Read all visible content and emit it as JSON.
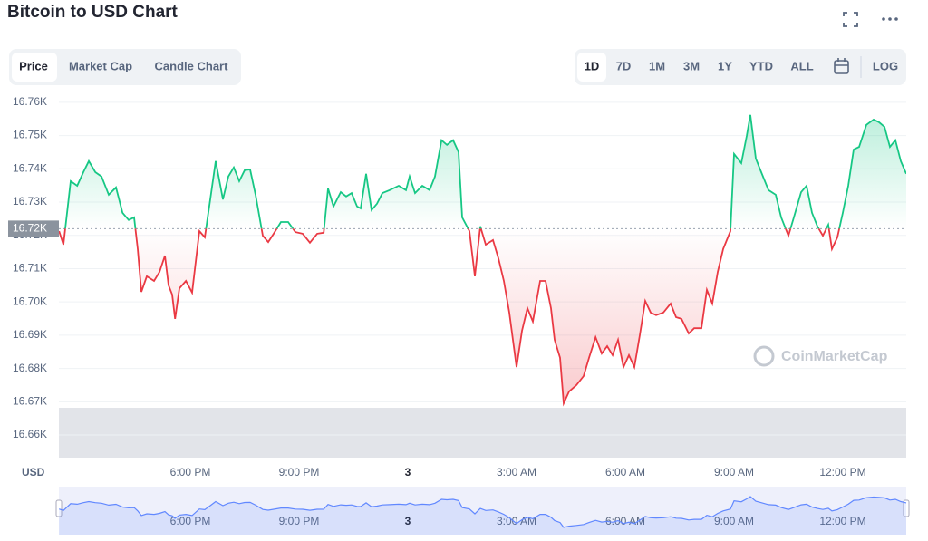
{
  "ui": {
    "tabs": [
      "Price",
      "Market Cap",
      "Candle Chart"
    ],
    "ranges": [
      "1D",
      "7D",
      "1M",
      "3M",
      "1Y",
      "YTD",
      "ALL"
    ],
    "log": "LOG",
    "watermark": "CoinMarketCap"
  },
  "chart_data": {
    "type": "line",
    "title": "Bitcoin to USD Chart",
    "y_unit": "USD",
    "up_color": "#16c784",
    "down_color": "#ea3943",
    "nav_color": "#6188ff",
    "grid": true,
    "reference": {
      "value": 16722,
      "label": "16.72K"
    },
    "xlim": [
      14.375,
      37.75
    ],
    "ylim": [
      16653.2,
      16763.5
    ],
    "xticks": [
      {
        "value": 18,
        "label": "6:00 PM"
      },
      {
        "value": 21,
        "label": "9:00 PM"
      },
      {
        "value": 24,
        "label": "3"
      },
      {
        "value": 27,
        "label": "3:00 AM"
      },
      {
        "value": 30,
        "label": "6:00 AM"
      },
      {
        "value": 33,
        "label": "9:00 AM"
      },
      {
        "value": 36,
        "label": "12:00 PM"
      }
    ],
    "yticks": [
      {
        "value": 16660,
        "label": "16.66K"
      },
      {
        "value": 16670,
        "label": "16.67K"
      },
      {
        "value": 16680,
        "label": "16.68K"
      },
      {
        "value": 16690,
        "label": "16.69K"
      },
      {
        "value": 16700,
        "label": "16.70K"
      },
      {
        "value": 16710,
        "label": "16.71K"
      },
      {
        "value": 16720,
        "label": "16.72K"
      },
      {
        "value": 16730,
        "label": "16.73K"
      },
      {
        "value": 16740,
        "label": "16.74K"
      },
      {
        "value": 16750,
        "label": "16.75K"
      },
      {
        "value": 16760,
        "label": "16.76K"
      }
    ],
    "x": [
      14.38,
      14.5,
      14.7,
      14.88,
      15.05,
      15.2,
      15.38,
      15.55,
      15.75,
      15.95,
      16.13,
      16.3,
      16.45,
      16.55,
      16.65,
      16.8,
      17.0,
      17.15,
      17.3,
      17.4,
      17.5,
      17.58,
      17.7,
      17.88,
      18.05,
      18.25,
      18.4,
      18.55,
      18.7,
      18.9,
      19.05,
      19.2,
      19.35,
      19.5,
      19.65,
      19.8,
      20.0,
      20.15,
      20.3,
      20.5,
      20.7,
      20.9,
      21.1,
      21.3,
      21.5,
      21.68,
      21.8,
      21.95,
      22.15,
      22.3,
      22.45,
      22.6,
      22.7,
      22.85,
      23.0,
      23.15,
      23.3,
      23.5,
      23.75,
      23.95,
      24.05,
      24.2,
      24.4,
      24.6,
      24.75,
      24.93,
      25.08,
      25.25,
      25.4,
      25.5,
      25.7,
      25.85,
      26.0,
      26.15,
      26.35,
      26.5,
      26.65,
      26.8,
      27.0,
      27.15,
      27.3,
      27.45,
      27.65,
      27.8,
      27.95,
      28.05,
      28.2,
      28.3,
      28.45,
      28.65,
      28.85,
      29.0,
      29.18,
      29.35,
      29.5,
      29.65,
      29.8,
      29.95,
      30.1,
      30.25,
      30.4,
      30.55,
      30.7,
      30.85,
      31.05,
      31.25,
      31.4,
      31.55,
      31.75,
      31.9,
      32.1,
      32.25,
      32.4,
      32.55,
      32.7,
      32.9,
      33.0,
      33.2,
      33.35,
      33.45,
      33.6,
      33.75,
      33.95,
      34.15,
      34.3,
      34.5,
      34.65,
      34.85,
      35.0,
      35.15,
      35.3,
      35.45,
      35.6,
      35.7,
      35.85,
      36.0,
      36.15,
      36.3,
      36.45,
      36.65,
      36.85,
      37.0,
      37.15,
      37.3,
      37.45,
      37.6,
      37.75
    ],
    "values": [
      16721.3,
      16717.2,
      16736.3,
      16734.9,
      16739,
      16742.3,
      16739,
      16737.7,
      16732.2,
      16734.4,
      16726.8,
      16724.6,
      16725.4,
      16715.9,
      16703,
      16707.7,
      16706.3,
      16709,
      16713.9,
      16705,
      16702.2,
      16694.9,
      16704.1,
      16706.3,
      16702.8,
      16721.3,
      16719.4,
      16730.8,
      16742.3,
      16730.8,
      16737.7,
      16740.4,
      16736.3,
      16739.6,
      16739.8,
      16732.2,
      16719.9,
      16718,
      16720.5,
      16724,
      16724,
      16721,
      16720.5,
      16717.8,
      16720.5,
      16720.8,
      16734.1,
      16728.7,
      16733,
      16731.7,
      16732.7,
      16728.7,
      16728.1,
      16738.5,
      16727.6,
      16729.5,
      16732.7,
      16733.6,
      16734.9,
      16733.6,
      16737.7,
      16732.7,
      16734.9,
      16733.6,
      16737.7,
      16748.6,
      16747.2,
      16748.6,
      16745,
      16725.4,
      16721.3,
      16707.7,
      16722.7,
      16717.2,
      16718.6,
      16713.1,
      16706.3,
      16696.8,
      16680.4,
      16691.3,
      16698.1,
      16694.1,
      16706.3,
      16706.3,
      16698.1,
      16688.6,
      16683.2,
      16669.5,
      16673.1,
      16675,
      16677.7,
      16683.2,
      16689.4,
      16684.5,
      16686.7,
      16684,
      16688.6,
      16680.4,
      16684,
      16680.4,
      16690,
      16700.3,
      16696.8,
      16696,
      16696.8,
      16699.5,
      16695.4,
      16694.9,
      16690.5,
      16692.1,
      16692.1,
      16703.6,
      16699.5,
      16709,
      16715.9,
      16721.3,
      16744.5,
      16741.7,
      16749.9,
      16756.2,
      16743.1,
      16739,
      16733.6,
      16732.2,
      16725.4,
      16719.9,
      16725.4,
      16733,
      16734.9,
      16726.8,
      16722.7,
      16719.9,
      16723.2,
      16715.9,
      16719.4,
      16726.8,
      16734.9,
      16745.8,
      16746.6,
      16753.2,
      16754.8,
      16754,
      16752.6,
      16746.6,
      16748.6,
      16742.3,
      16738.5
    ]
  }
}
